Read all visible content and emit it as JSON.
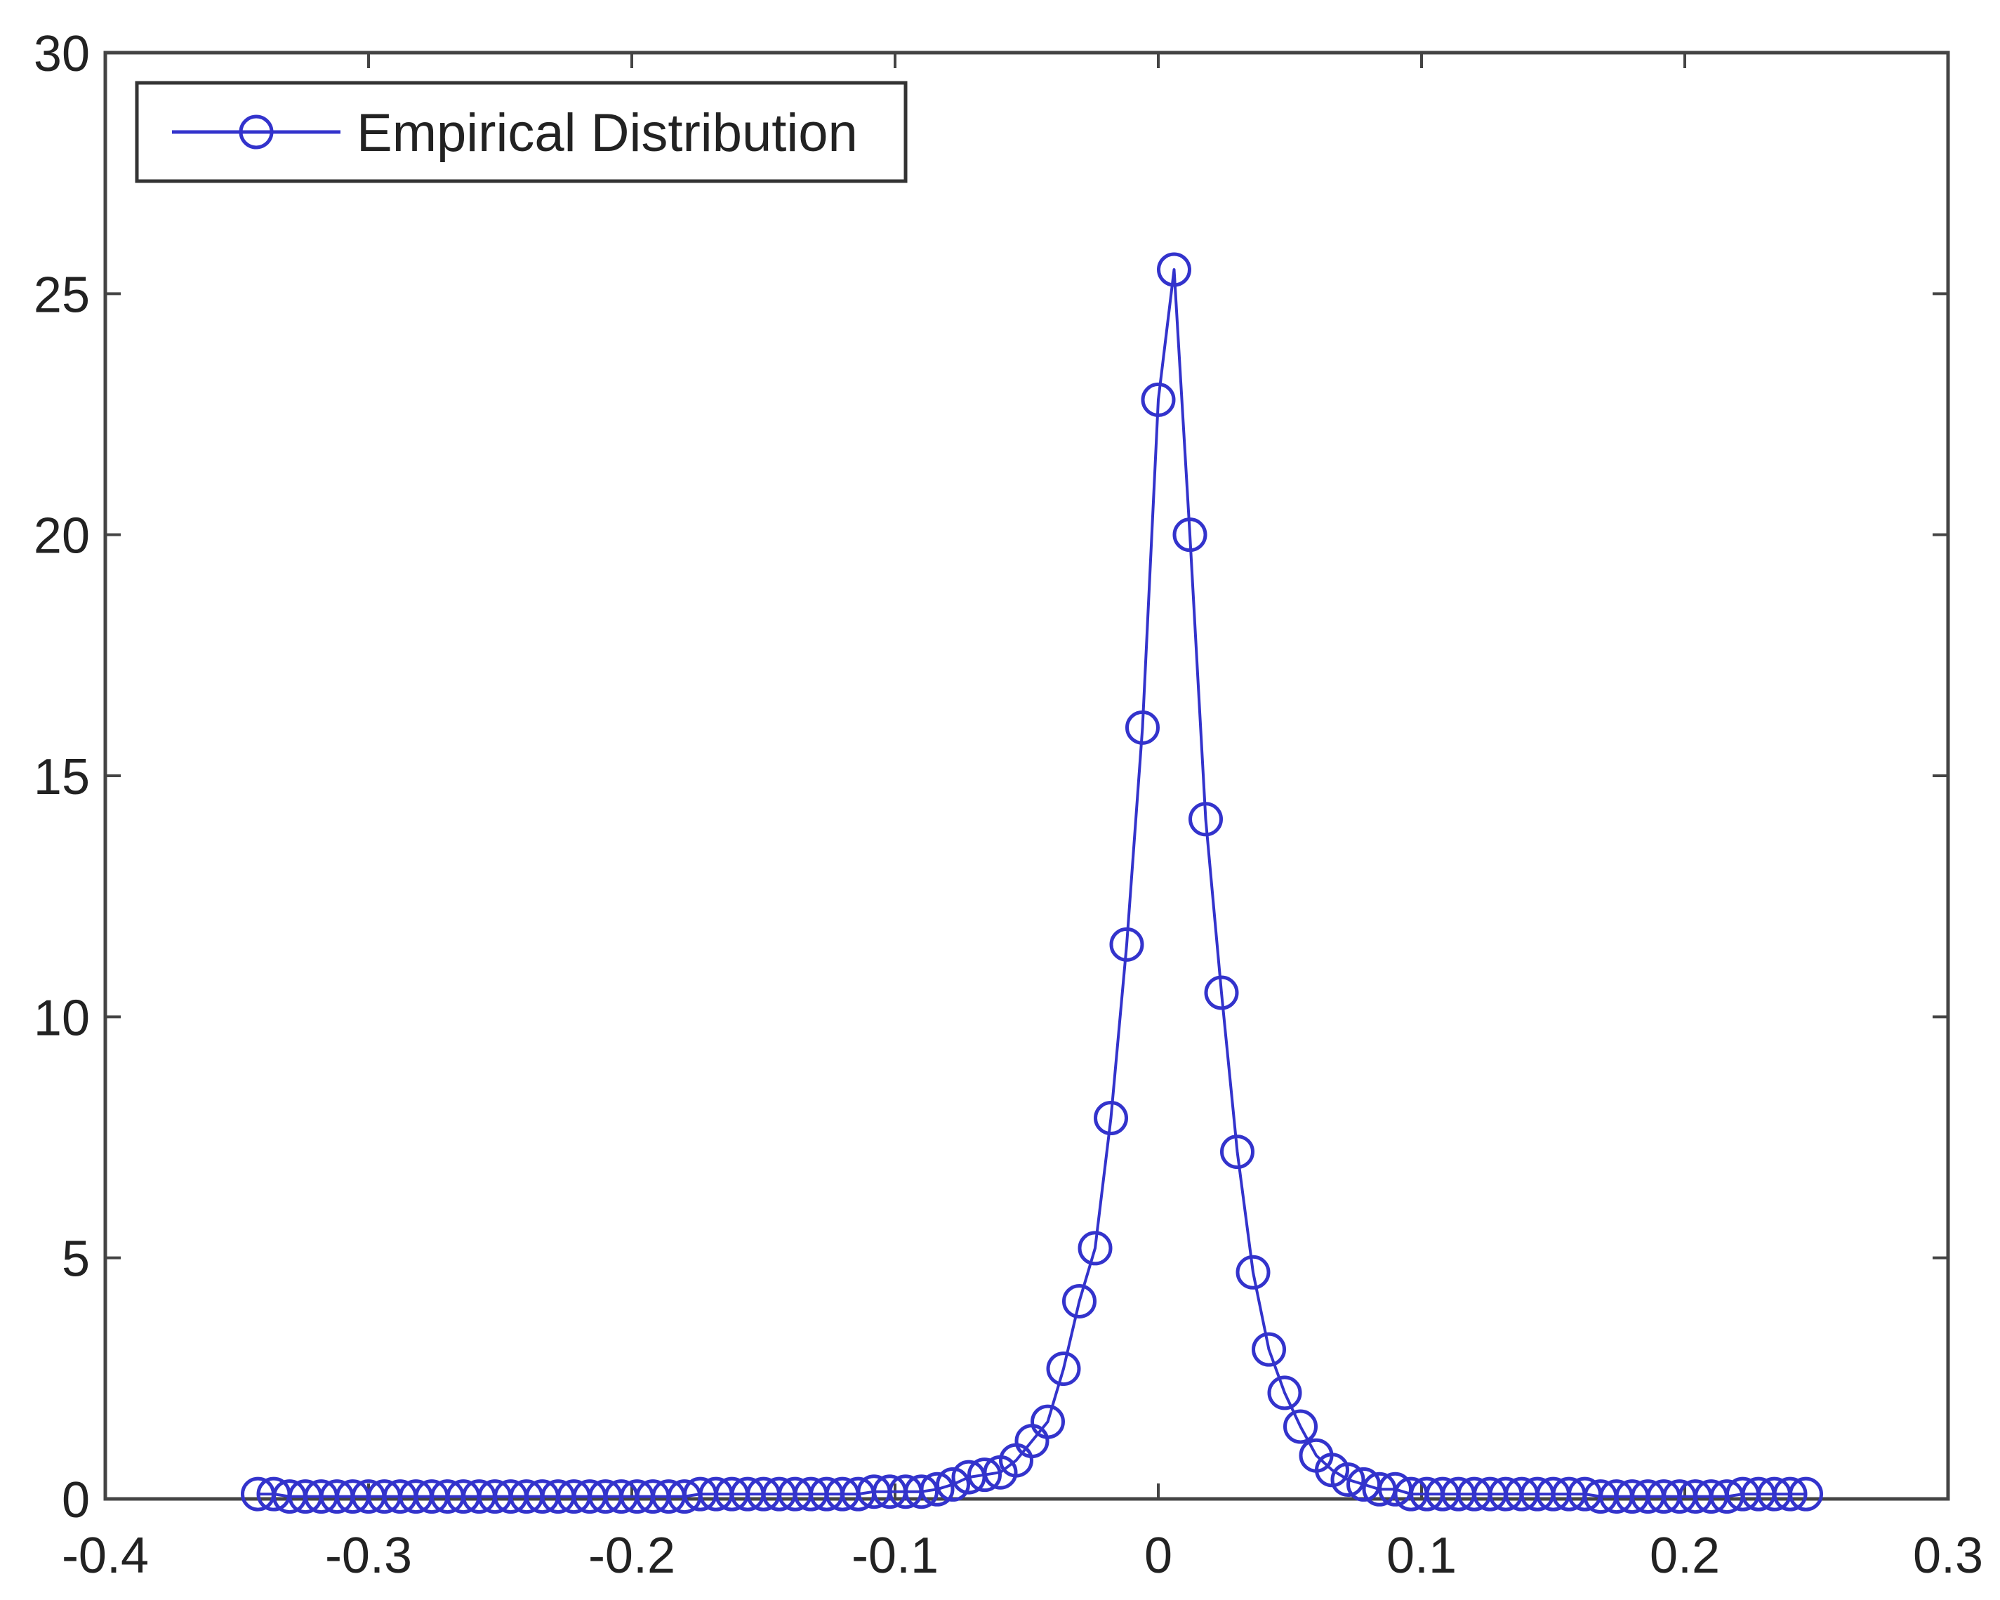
{
  "chart_data": {
    "type": "line",
    "title": "",
    "xlabel": "",
    "ylabel": "",
    "xlim": [
      -0.4,
      0.3
    ],
    "ylim": [
      0,
      30
    ],
    "x_ticks": [
      -0.4,
      -0.3,
      -0.2,
      -0.1,
      0,
      0.1,
      0.2,
      0.3
    ],
    "x_tick_labels": [
      "-0.4",
      "-0.3",
      "-0.2",
      "-0.1",
      "0",
      "0.1",
      "0.2",
      "0.3"
    ],
    "y_ticks": [
      0,
      5,
      10,
      15,
      20,
      25,
      30
    ],
    "y_tick_labels": [
      "0",
      "5",
      "10",
      "15",
      "20",
      "25",
      "30"
    ],
    "grid": false,
    "legend_position": "top-left",
    "series": [
      {
        "name": "Empirical Distribution",
        "color": "#3333cc",
        "marker": "circle",
        "x": [
          -0.342,
          -0.336,
          -0.33,
          -0.324,
          -0.318,
          -0.312,
          -0.306,
          -0.3,
          -0.294,
          -0.288,
          -0.282,
          -0.276,
          -0.27,
          -0.264,
          -0.258,
          -0.252,
          -0.246,
          -0.24,
          -0.234,
          -0.228,
          -0.222,
          -0.216,
          -0.21,
          -0.204,
          -0.198,
          -0.192,
          -0.186,
          -0.18,
          -0.174,
          -0.168,
          -0.162,
          -0.156,
          -0.15,
          -0.144,
          -0.138,
          -0.132,
          -0.126,
          -0.12,
          -0.114,
          -0.108,
          -0.102,
          -0.096,
          -0.09,
          -0.084,
          -0.078,
          -0.072,
          -0.066,
          -0.06,
          -0.054,
          -0.048,
          -0.042,
          -0.036,
          -0.03,
          -0.024,
          -0.018,
          -0.012,
          -0.006,
          0.0,
          0.006,
          0.012,
          0.018,
          0.024,
          0.03,
          0.036,
          0.042,
          0.048,
          0.054,
          0.06,
          0.066,
          0.072,
          0.078,
          0.084,
          0.09,
          0.096,
          0.102,
          0.108,
          0.114,
          0.12,
          0.126,
          0.132,
          0.138,
          0.144,
          0.15,
          0.156,
          0.162,
          0.168,
          0.174,
          0.18,
          0.186,
          0.192,
          0.198,
          0.204,
          0.21,
          0.216,
          0.222,
          0.228,
          0.234,
          0.24,
          0.246
        ],
        "y": [
          0.1,
          0.1,
          0.05,
          0.05,
          0.05,
          0.05,
          0.05,
          0.05,
          0.05,
          0.05,
          0.05,
          0.05,
          0.05,
          0.05,
          0.05,
          0.05,
          0.05,
          0.05,
          0.05,
          0.05,
          0.05,
          0.05,
          0.05,
          0.05,
          0.05,
          0.05,
          0.05,
          0.05,
          0.1,
          0.1,
          0.1,
          0.1,
          0.1,
          0.1,
          0.1,
          0.1,
          0.1,
          0.1,
          0.1,
          0.15,
          0.15,
          0.15,
          0.15,
          0.2,
          0.3,
          0.45,
          0.5,
          0.55,
          0.8,
          1.2,
          1.6,
          2.7,
          4.1,
          5.2,
          7.9,
          11.5,
          16.0,
          22.8,
          25.5,
          20.0,
          14.1,
          10.5,
          7.2,
          4.7,
          3.1,
          2.2,
          1.5,
          0.9,
          0.6,
          0.4,
          0.3,
          0.2,
          0.2,
          0.1,
          0.1,
          0.1,
          0.1,
          0.1,
          0.1,
          0.1,
          0.1,
          0.1,
          0.1,
          0.1,
          0.1,
          0.05,
          0.05,
          0.05,
          0.05,
          0.05,
          0.05,
          0.05,
          0.05,
          0.05,
          0.1,
          0.1,
          0.1,
          0.1,
          0.1
        ]
      }
    ]
  }
}
